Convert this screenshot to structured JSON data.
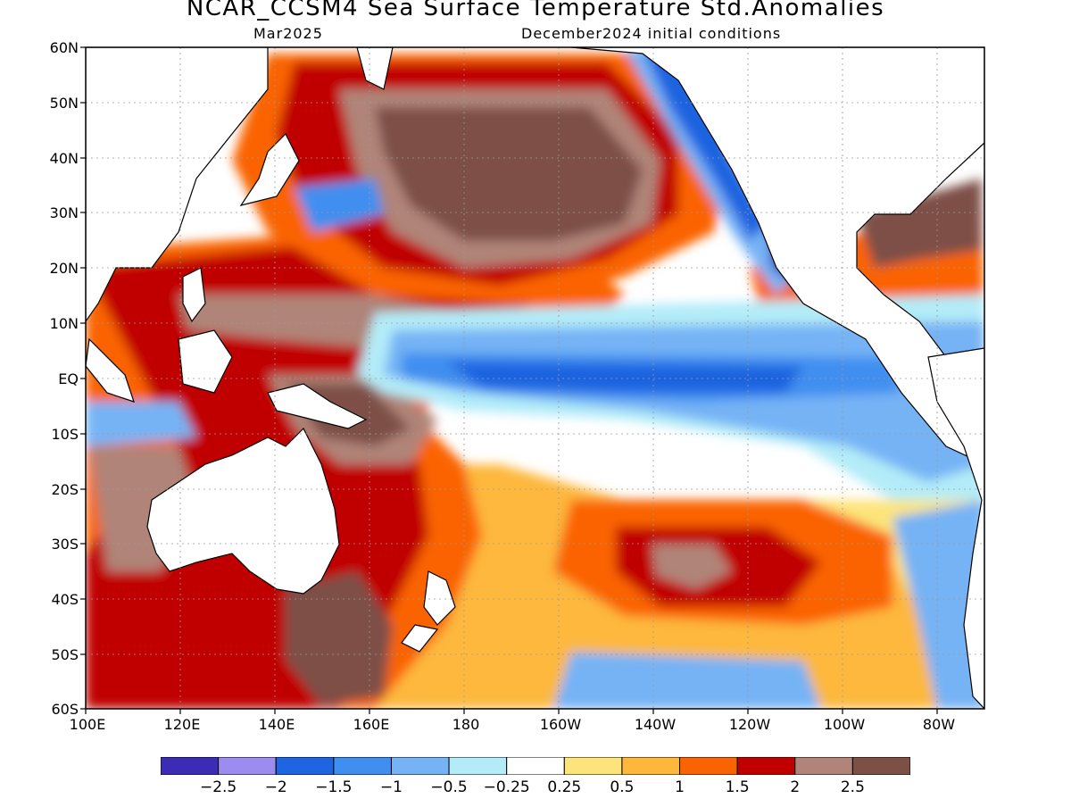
{
  "title": "NCAR_CCSM4 Sea Surface Temperature Std.Anomalies",
  "subtitle_left": "Mar2025",
  "subtitle_right": "December2024 initial conditions",
  "lat_ticks": [
    "60N",
    "50N",
    "40N",
    "30N",
    "20N",
    "10N",
    "EQ",
    "10S",
    "20S",
    "30S",
    "40S",
    "50S",
    "60S"
  ],
  "lon_ticks": [
    "100E",
    "120E",
    "140E",
    "160E",
    "180",
    "160W",
    "140W",
    "120W",
    "100W",
    "80W"
  ],
  "colorbar": {
    "colors": [
      "#3b2bb5",
      "#9d8cf0",
      "#1f64e0",
      "#3f8ff0",
      "#76b3f5",
      "#b3ecf8",
      "#ffffff",
      "#fde47a",
      "#fdb83c",
      "#fa6400",
      "#c00000",
      "#b08478",
      "#7d5046"
    ],
    "labels": [
      "-2.5",
      "-2",
      "-1.5",
      "-1",
      "-0.5",
      "-0.25",
      "0.25",
      "0.5",
      "1",
      "1.5",
      "2",
      "2.5"
    ]
  },
  "colors": {
    "ocean_neutral": "#ffffff",
    "land": "#ffffff",
    "coastline": "#000000",
    "gridline": "#9a9a9a"
  }
}
